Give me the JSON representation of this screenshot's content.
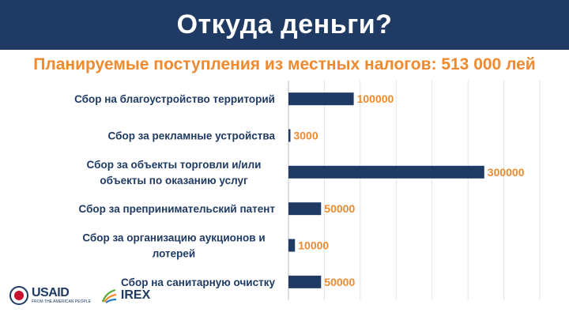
{
  "header": {
    "title": "Откуда деньги?",
    "subtitle": "Планируемые поступления из местных налогов: 513 000 лей"
  },
  "logos": {
    "usaid": "USAID",
    "usaid_tagline": "FROM THE AMERICAN PEOPLE",
    "irex": "IREX"
  },
  "colors": {
    "banner": "#1f3a63",
    "bar": "#1f3a63",
    "value_label": "#ef8a2f",
    "category_label": "#1f3a63"
  },
  "chart_data": {
    "type": "bar",
    "orientation": "horizontal",
    "categories": [
      [
        "Сбор на благоустройство территорий"
      ],
      [
        "Сбор за рекламные устройства"
      ],
      [
        "Сбор за объекты торговли и/или",
        "объекты по оказанию услуг"
      ],
      [
        "Сбор за преприниматель­ский патент"
      ],
      [
        "Сбор за организацию аукционов и",
        "лотерей"
      ],
      [
        "Сбор на санитарную очистку"
      ]
    ],
    "values": [
      100000,
      3000,
      300000,
      50000,
      10000,
      50000
    ],
    "value_labels": [
      "100000",
      "3000",
      "300000",
      "50000",
      "10000",
      "50000"
    ],
    "xlim": [
      0,
      385000
    ],
    "grid": true
  }
}
